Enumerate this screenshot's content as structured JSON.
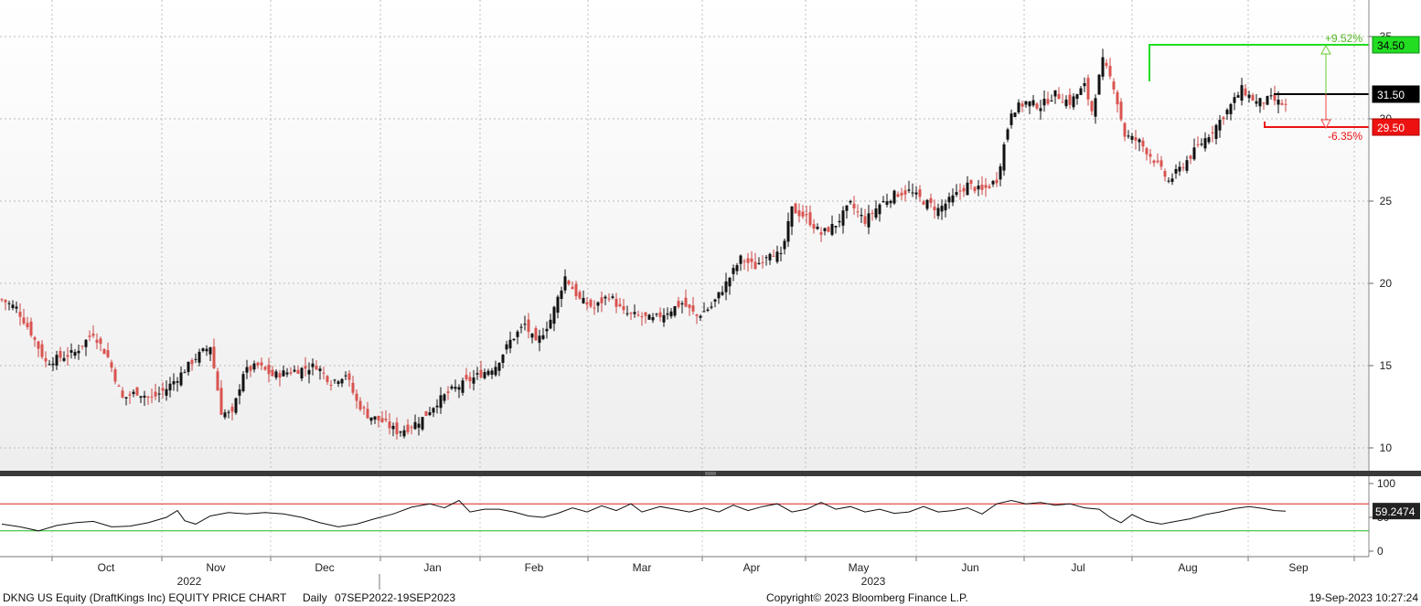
{
  "chart_data": {
    "type": "candlestick",
    "security": "DKNG US Equity (DraftKings Inc) EQUITY PRICE CHART",
    "frequency": "Daily",
    "range_label": "07SEP2022-19SEP2023",
    "copyright": "Copyright© 2023 Bloomberg Finance L.P.",
    "timestamp": "19-Sep-2023 10:27:24",
    "price_axis": {
      "ylim": [
        8.5,
        36.5
      ],
      "ticks": [
        "10",
        "15",
        "20",
        "25",
        "30",
        "35"
      ],
      "tick_values": [
        10,
        15,
        20,
        25,
        30,
        35
      ]
    },
    "month_labels": [
      "Oct",
      "Nov",
      "Dec",
      "Jan",
      "Feb",
      "Mar",
      "Apr",
      "May",
      "Jun",
      "Jul",
      "Aug",
      "Sep"
    ],
    "year_labels": [
      "2022",
      "2023"
    ],
    "levels": {
      "upper": {
        "value": 34.5,
        "label": "34.50",
        "pct": "+9.52%",
        "color": "#22dd22"
      },
      "current": {
        "value": 31.5,
        "label": "31.50",
        "color": "#000000"
      },
      "lower": {
        "value": 29.5,
        "label": "29.50",
        "pct": "-6.35%",
        "color": "#ee1111"
      }
    },
    "close_series": [
      [
        0,
        19.0
      ],
      [
        4,
        18.5
      ],
      [
        8,
        17.0
      ],
      [
        12,
        15.2
      ],
      [
        16,
        15.5
      ],
      [
        20,
        15.8
      ],
      [
        25,
        17.0
      ],
      [
        29,
        15.5
      ],
      [
        33,
        13.0
      ],
      [
        37,
        13.4
      ],
      [
        41,
        13.0
      ],
      [
        45,
        13.6
      ],
      [
        49,
        14.5
      ],
      [
        53,
        15.5
      ],
      [
        57,
        16.2
      ],
      [
        60,
        12.2
      ],
      [
        63,
        12.0
      ],
      [
        66,
        14.6
      ],
      [
        70,
        15.0
      ],
      [
        74,
        14.4
      ],
      [
        78,
        14.6
      ],
      [
        82,
        14.8
      ],
      [
        86,
        15.0
      ],
      [
        90,
        14.0
      ],
      [
        94,
        14.5
      ],
      [
        97,
        12.8
      ],
      [
        100,
        12.0
      ],
      [
        104,
        11.6
      ],
      [
        108,
        11.0
      ],
      [
        111,
        11.2
      ],
      [
        115,
        11.8
      ],
      [
        119,
        12.8
      ],
      [
        123,
        13.5
      ],
      [
        127,
        14.0
      ],
      [
        131,
        14.5
      ],
      [
        135,
        15.0
      ],
      [
        139,
        16.5
      ],
      [
        143,
        17.5
      ],
      [
        146,
        16.3
      ],
      [
        150,
        17.8
      ],
      [
        154,
        20.4
      ],
      [
        158,
        19.0
      ],
      [
        162,
        18.5
      ],
      [
        166,
        19.3
      ],
      [
        170,
        18.2
      ],
      [
        174,
        18.0
      ],
      [
        178,
        17.8
      ],
      [
        182,
        18.3
      ],
      [
        186,
        18.8
      ],
      [
        190,
        18.0
      ],
      [
        194,
        18.6
      ],
      [
        198,
        20.0
      ],
      [
        202,
        21.5
      ],
      [
        206,
        21.0
      ],
      [
        210,
        22.0
      ],
      [
        213,
        21.6
      ],
      [
        216,
        24.5
      ],
      [
        220,
        24.0
      ],
      [
        224,
        23.0
      ],
      [
        228,
        23.6
      ],
      [
        232,
        24.8
      ],
      [
        236,
        23.8
      ],
      [
        240,
        24.8
      ],
      [
        244,
        25.4
      ],
      [
        248,
        25.6
      ],
      [
        252,
        25.0
      ],
      [
        256,
        24.5
      ],
      [
        260,
        25.2
      ],
      [
        264,
        26.0
      ],
      [
        268,
        25.6
      ],
      [
        272,
        26.3
      ],
      [
        276,
        30.5
      ],
      [
        280,
        31.0
      ],
      [
        284,
        30.8
      ],
      [
        288,
        31.5
      ],
      [
        292,
        31.0
      ],
      [
        296,
        32.0
      ],
      [
        298,
        30.5
      ],
      [
        301,
        33.5
      ],
      [
        304,
        32.0
      ],
      [
        307,
        29.0
      ],
      [
        311,
        28.6
      ],
      [
        315,
        27.5
      ],
      [
        319,
        26.2
      ],
      [
        323,
        27.2
      ],
      [
        327,
        28.3
      ],
      [
        331,
        29.3
      ],
      [
        335,
        30.5
      ],
      [
        339,
        31.8
      ],
      [
        343,
        31.0
      ],
      [
        347,
        31.2
      ],
      [
        351,
        30.8
      ]
    ],
    "rsi_axis": {
      "ylim": [
        0,
        100
      ],
      "ticks": [
        "100",
        "50",
        "0"
      ],
      "tick_values": [
        100,
        50,
        0
      ],
      "overbought": 70,
      "oversold": 30
    },
    "rsi_value_label": "59.2474",
    "rsi_series": [
      [
        0,
        40
      ],
      [
        5,
        36
      ],
      [
        10,
        30
      ],
      [
        15,
        38
      ],
      [
        20,
        42
      ],
      [
        25,
        44
      ],
      [
        30,
        36
      ],
      [
        35,
        37
      ],
      [
        40,
        42
      ],
      [
        45,
        50
      ],
      [
        48,
        60
      ],
      [
        50,
        45
      ],
      [
        53,
        40
      ],
      [
        57,
        52
      ],
      [
        62,
        57
      ],
      [
        67,
        55
      ],
      [
        72,
        57
      ],
      [
        77,
        55
      ],
      [
        82,
        50
      ],
      [
        87,
        42
      ],
      [
        92,
        36
      ],
      [
        97,
        40
      ],
      [
        102,
        48
      ],
      [
        107,
        55
      ],
      [
        112,
        65
      ],
      [
        117,
        70
      ],
      [
        121,
        64
      ],
      [
        125,
        75
      ],
      [
        128,
        58
      ],
      [
        132,
        62
      ],
      [
        136,
        62
      ],
      [
        140,
        58
      ],
      [
        144,
        52
      ],
      [
        148,
        50
      ],
      [
        152,
        56
      ],
      [
        156,
        64
      ],
      [
        160,
        58
      ],
      [
        164,
        67
      ],
      [
        168,
        60
      ],
      [
        172,
        70
      ],
      [
        175,
        58
      ],
      [
        180,
        66
      ],
      [
        184,
        62
      ],
      [
        188,
        58
      ],
      [
        192,
        64
      ],
      [
        196,
        58
      ],
      [
        200,
        68
      ],
      [
        204,
        60
      ],
      [
        208,
        66
      ],
      [
        212,
        70
      ],
      [
        216,
        58
      ],
      [
        220,
        62
      ],
      [
        224,
        72
      ],
      [
        228,
        62
      ],
      [
        232,
        66
      ],
      [
        236,
        58
      ],
      [
        240,
        62
      ],
      [
        244,
        56
      ],
      [
        248,
        58
      ],
      [
        252,
        66
      ],
      [
        256,
        58
      ],
      [
        260,
        60
      ],
      [
        264,
        64
      ],
      [
        268,
        55
      ],
      [
        272,
        70
      ],
      [
        276,
        75
      ],
      [
        280,
        70
      ],
      [
        284,
        72
      ],
      [
        288,
        68
      ],
      [
        292,
        70
      ],
      [
        296,
        64
      ],
      [
        300,
        62
      ],
      [
        303,
        50
      ],
      [
        306,
        42
      ],
      [
        309,
        54
      ],
      [
        313,
        44
      ],
      [
        317,
        40
      ],
      [
        321,
        44
      ],
      [
        325,
        48
      ],
      [
        329,
        54
      ],
      [
        333,
        58
      ],
      [
        337,
        63
      ],
      [
        341,
        66
      ],
      [
        345,
        63
      ],
      [
        348,
        60
      ],
      [
        351,
        59.2474
      ]
    ]
  }
}
